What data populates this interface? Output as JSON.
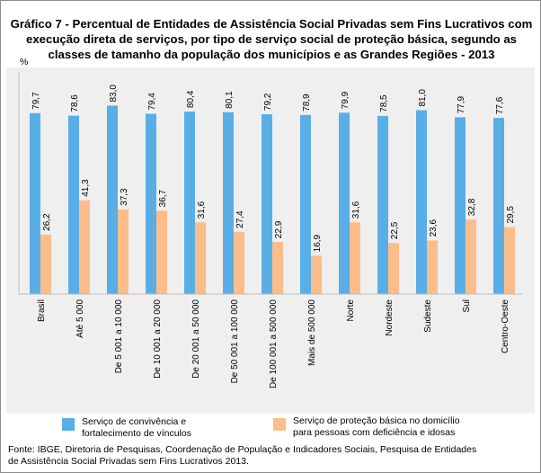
{
  "title_lines": [
    "Gráfico 7 - Percentual de Entidades de Assistência Social Privadas sem Fins Lucrativos com",
    "execução direta de serviços, por tipo de serviço social de proteção básica, segundo as",
    "classes de tamanho da população dos municípios e as Grandes Regiões - 2013"
  ],
  "unit_label": "%",
  "legend": [
    {
      "label_lines": [
        "Serviço de convivência e",
        "fortalecimento de vínculos"
      ],
      "color": "#5aaee6"
    },
    {
      "label_lines": [
        "Serviço de proteção básica no domicílio",
        "para pessoas com deficiência e idosas"
      ],
      "color": "#fbbd8a"
    }
  ],
  "source_lines": [
    "Fonte: IBGE, Diretoria de Pesquisas, Coordenação de População e Indicadores Sociais, Pesquisa de Entidades",
    "de Assistência Social Privadas sem Fins Lucrativos 2013."
  ],
  "chart_data": {
    "type": "bar",
    "categories": [
      "Brasil",
      "Até 5 000",
      "De 5 001 a 10 000",
      "De 10 001 a 20 000",
      "De 20 001 a 50 000",
      "De 50 001 a 100 000",
      "De 100 001 a 500 000",
      "Mais de 500 000",
      "Norte",
      "Nordeste",
      "Sudeste",
      "Sul",
      "Centro-Oeste"
    ],
    "series": [
      {
        "name": "Serviço de convivência e fortalecimento de vínculos",
        "color": "#5aaee6",
        "values": [
          79.7,
          78.6,
          83.0,
          79.4,
          80.4,
          80.1,
          79.2,
          78.9,
          79.9,
          78.5,
          81.0,
          77.9,
          77.6
        ],
        "labels": [
          "79,7",
          "78,6",
          "83,0",
          "79,4",
          "80,4",
          "80,1",
          "79,2",
          "78,9",
          "79,9",
          "78,5",
          "81,0",
          "77,9",
          "77,6"
        ]
      },
      {
        "name": "Serviço de proteção básica no domicílio para pessoas com deficiência e idosas",
        "color": "#fbbd8a",
        "values": [
          26.2,
          41.3,
          37.3,
          36.7,
          31.6,
          27.4,
          22.9,
          16.9,
          31.6,
          22.5,
          23.6,
          32.8,
          29.5
        ],
        "labels": [
          "26,2",
          "41,3",
          "37,3",
          "36,7",
          "31,6",
          "27,4",
          "22,9",
          "16,9",
          "31,6",
          "22,5",
          "23,6",
          "32,8",
          "29,5"
        ]
      }
    ],
    "ylabel": "%",
    "ylim": [
      0,
      90
    ],
    "grid": false,
    "legend_position": "bottom"
  }
}
